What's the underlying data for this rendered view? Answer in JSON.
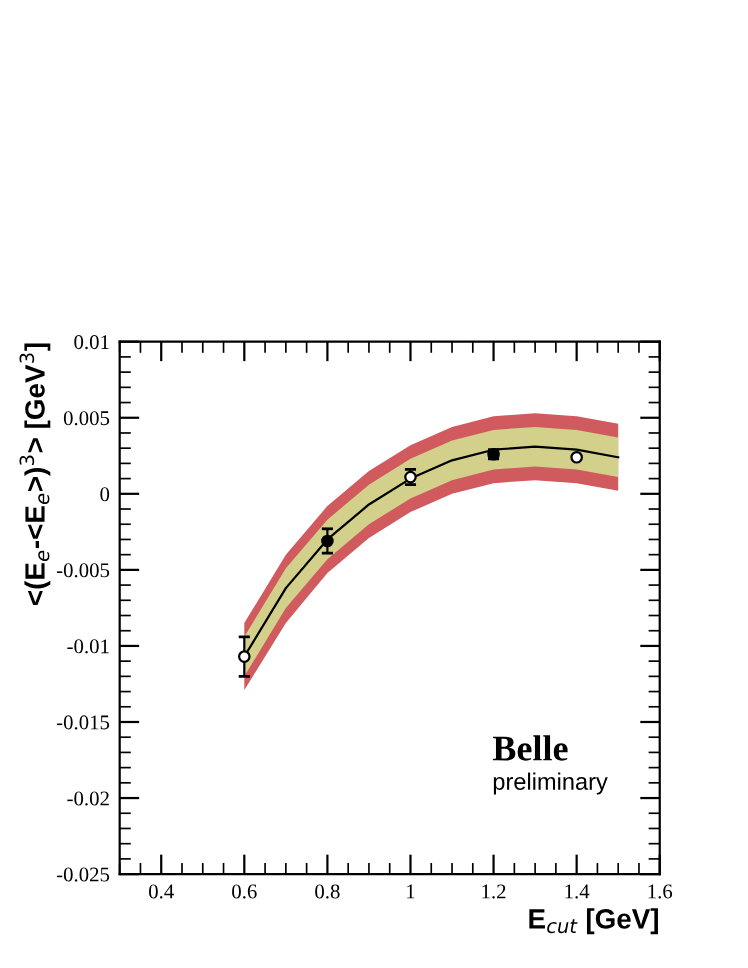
{
  "chart_data": {
    "type": "line",
    "xlabel": "E$_{cut}$ [GeV]",
    "ylabel": "<(E$_{e}$-<E$_{e}$>)$^{3}$> [GeV$^{3}$]",
    "xlim": [
      0.3,
      1.6
    ],
    "xticks": [
      0.4,
      0.6,
      0.8,
      1,
      1.2,
      1.4,
      1.6
    ],
    "ylim": [
      -0.025,
      0.01
    ],
    "yticks": [
      -0.025,
      -0.02,
      -0.015,
      -0.01,
      -0.005,
      0,
      0.005,
      0.01
    ],
    "grid": false,
    "legend": false,
    "series": [
      {
        "type": "line",
        "color": "#d05a5e",
        "marker": "none",
        "x": [
          0.6,
          0.7,
          0.8,
          0.9,
          1.0,
          1.1,
          1.2,
          1.3,
          1.4,
          1.5
        ],
        "values": [
          null,
          null,
          null,
          null,
          null,
          null,
          null,
          null,
          null,
          null
        ],
        "lower": [
          -0.0129,
          -0.0085,
          -0.0052,
          -0.0029,
          -0.0012,
          0.0,
          0.0007,
          0.0009,
          0.0007,
          0.0002
        ],
        "upper": [
          -0.0085,
          -0.004,
          -0.0008,
          0.0015,
          0.0032,
          0.0044,
          0.0051,
          0.0053,
          0.0051,
          0.0046
        ]
      },
      {
        "color": "#000000",
        "marker": "none",
        "x": [
          0.6,
          0.7,
          0.8,
          0.9,
          1.0,
          1.1,
          1.2,
          1.3,
          1.4,
          1.5
        ],
        "values": [
          -0.0107,
          -0.0062,
          -0.003,
          -0.0007,
          0.001,
          0.0022,
          0.0029,
          0.0031,
          0.0029,
          0.0024
        ],
        "lower": [
          -0.012,
          -0.0075,
          -0.0043,
          -0.002,
          -0.0003,
          0.0009,
          0.0016,
          0.0018,
          0.0016,
          0.0011
        ],
        "upper": [
          -0.0094,
          -0.0049,
          -0.0017,
          0.0006,
          0.0023,
          0.0035,
          0.0042,
          0.0044,
          0.0042,
          0.0037
        ]
      },
      {
        "type": "scatter",
        "color": "#000000",
        "marker": "circle",
        "x": [
          0.8,
          1.2
        ],
        "values": [
          -0.0031,
          0.0026
        ],
        "errors": [
          0.0008,
          0.0003
        ]
      },
      {
        "type": "scatter",
        "color": "#ffffff",
        "marker": "circle",
        "x": [
          0.6,
          1.0,
          1.4
        ],
        "values": [
          -0.0107,
          0.0011,
          0.0024
        ],
        "errors": [
          0.0013,
          0.0005,
          null
        ]
      }
    ],
    "annotations": [
      "Belle",
      "preliminary"
    ]
  }
}
